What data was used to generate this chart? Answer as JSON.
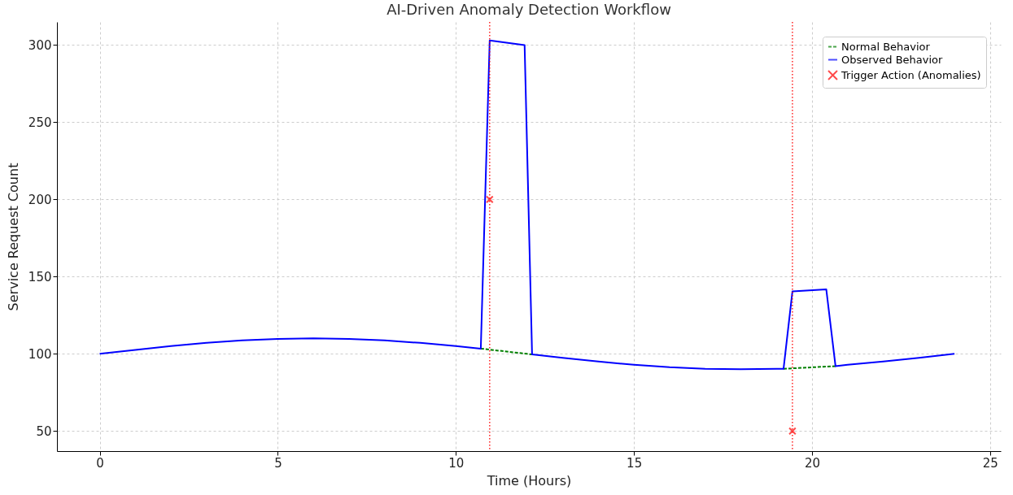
{
  "chart_data": {
    "type": "line",
    "title": "AI-Driven Anomaly Detection Workflow",
    "xlabel": "Time (Hours)",
    "ylabel": "Service Request Count",
    "xlim": [
      -1.2,
      25.3
    ],
    "ylim": [
      37,
      315
    ],
    "xticks": [
      0,
      5,
      10,
      15,
      20,
      25
    ],
    "yticks": [
      50,
      100,
      150,
      200,
      250,
      300
    ],
    "grid": true,
    "legend": "top right",
    "series": [
      {
        "name": "Normal Behavior",
        "type": "line",
        "line_style": "dashed",
        "color": "#008000",
        "x": [
          10.7,
          11,
          12,
          12.14,
          15,
          19.2,
          20,
          20.66
        ],
        "values": [
          103.4,
          102.6,
          100,
          99.6,
          null,
          90.3,
          91.3,
          92
        ]
      },
      {
        "name": "Observed Behavior",
        "type": "line",
        "line_style": "solid",
        "color": "#0000ff",
        "x": [
          0,
          1,
          2,
          3,
          4,
          5,
          6,
          7,
          8,
          9,
          10,
          10.7,
          10.95,
          11.93,
          12.14,
          13,
          14,
          15,
          16,
          17,
          18,
          19,
          19.2,
          19.45,
          20.4,
          20.66,
          21,
          22,
          23,
          24
        ],
        "values": [
          100,
          102.6,
          105,
          107.1,
          108.7,
          109.7,
          110,
          109.7,
          108.7,
          107.1,
          105,
          103.4,
          303,
          300,
          99.6,
          97.4,
          95,
          92.9,
          91.3,
          90.3,
          90,
          90.3,
          90.3,
          140.5,
          141.8,
          92,
          92.9,
          95,
          97.4,
          100
        ]
      },
      {
        "name": "Trigger Action (Anomalies)",
        "type": "scatter",
        "marker": "cross",
        "color": "#ff0000",
        "x": [
          10.95,
          19.45
        ],
        "values": [
          200,
          50
        ]
      }
    ],
    "ref_lines": [
      {
        "axis": "x",
        "value": 10.95,
        "color": "#ff0000",
        "line_style": "dotted"
      },
      {
        "axis": "x",
        "value": 19.45,
        "color": "#ff0000",
        "line_style": "dotted"
      }
    ]
  }
}
